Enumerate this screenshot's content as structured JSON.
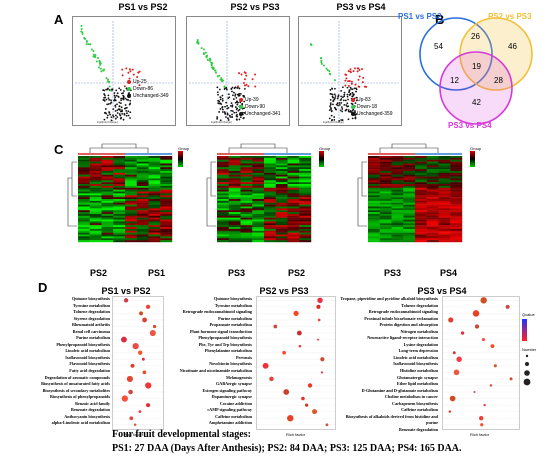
{
  "panels": {
    "A": "A",
    "B": "B",
    "C": "C",
    "D": "D"
  },
  "volcano": [
    {
      "title": "PS1 vs PS2",
      "up": "Up-25",
      "down": "Down-86",
      "unchanged": "Unchanged-349",
      "xlabel": "log2(Fold Change)"
    },
    {
      "title": "PS2 vs PS3",
      "up": "Up-39",
      "down": "Down-90",
      "unchanged": "Unchanged-341",
      "xlabel": "log2(Fold Change)"
    },
    {
      "title": "PS3 vs PS4",
      "up": "Up-83",
      "down": "Down-18",
      "unchanged": "Unchanged-359",
      "xlabel": "log2(Fold Change)"
    }
  ],
  "venn": {
    "labels": [
      "PS1 vs PS2",
      "PS2 vs PS3",
      "PS3 vs PS4"
    ],
    "values": [
      "54",
      "26",
      "46",
      "19",
      "12",
      "28",
      "42"
    ],
    "colors": [
      "#2a6fdb",
      "#f2c13a",
      "#d63ad6"
    ]
  },
  "heatmaps": [
    {
      "labels": [
        "PS2",
        "PS1"
      ]
    },
    {
      "labels": [
        "PS3",
        "PS2"
      ]
    },
    {
      "labels": [
        "PS3",
        "PS4"
      ]
    }
  ],
  "heatmap_legend_title": "Group",
  "dotplots": [
    {
      "title": "PS1 vs PS2",
      "terms": [
        "Quinone biosynthesis",
        "Tyrosine metabolism",
        "Toluene degradation",
        "Styrene degradation",
        "Rheumatoid arthritis",
        "Renal cell carcinoma",
        "Purine metabolism",
        "Phenylpropanoid biosynthesis",
        "Linoleic acid metabolism",
        "Isoflavonoid biosynthesis",
        "Flavonoid biosynthesis",
        "Fatty acid degradation",
        "Degradation of aromatic compounds",
        "Biosynthesis of unsaturated fatty acids",
        "Biosynthesis of secondary metabolites",
        "Biosynthesis of phenylpropanoids",
        "Benzoic acid family",
        "Benzoate degradation",
        "Anthocyanin biosynthesis",
        "alpha-Linolenic acid metabolism"
      ],
      "xlabel": "Rich factor"
    },
    {
      "title": "PS2 vs PS3",
      "terms": [
        "Quinone biosynthesis",
        "Tyrosine metabolism",
        "Retrograde endocannabinoid signaling",
        "Purine metabolism",
        "Propanoate metabolism",
        "Plant hormone signal transduction",
        "Phenylpropanoid biosynthesis",
        "Phe, Tyr and Trp biosynthesis",
        "Phenylalanine metabolism",
        "Pertussis",
        "Novobiocin biosynthesis",
        "Nicotinate and nicotinamide metabolism",
        "Melanogenesis",
        "GABAergic synapse",
        "Estrogen signaling pathway",
        "Dopaminergic synapse",
        "Cocaine addiction",
        "cAMP signaling pathway",
        "Caffeine metabolism",
        "Amphetamine addiction"
      ],
      "xlabel": "Rich factor"
    },
    {
      "title": "PS3 vs PS4",
      "terms": [
        "Tropane, piperidine and pyridine alkaloid biosynthesis",
        "Toluene degradation",
        "Retrograde endocannabinoid signaling",
        "Proximal tubule bicarbonate reclamation",
        "Protein digestion and absorption",
        "Nitrogen metabolism",
        "Neuroactive ligand-receptor interaction",
        "Lysine degradation",
        "Long-term depression",
        "Linoleic acid metabolism",
        "Isoflavonoid biosynthesis",
        "Histidine metabolism",
        "Glutamatergic synapse",
        "Ether lipid metabolism",
        "D-Glutamine and D-glutamate metabolism",
        "Choline metabolism in cancer",
        "Carbapenem biosynthesis",
        "Caffeine metabolism",
        "Biosynthesis of alkaloids derived from histidine and purine",
        "Benzoate degradation"
      ],
      "xlabel": "Rich factor",
      "legend_qvalue": "Qvalue",
      "legend_number": "Number"
    }
  ],
  "caption": {
    "line1": "Four fruit developmental stages:",
    "line2": "PS1: 27 DAA (Days After Anthesis); PS2: 84 DAA; PS3: 125 DAA; PS4: 165 DAA."
  },
  "colors": {
    "up": "#e02020",
    "down": "#2ecc40",
    "unchanged": "#111111"
  }
}
